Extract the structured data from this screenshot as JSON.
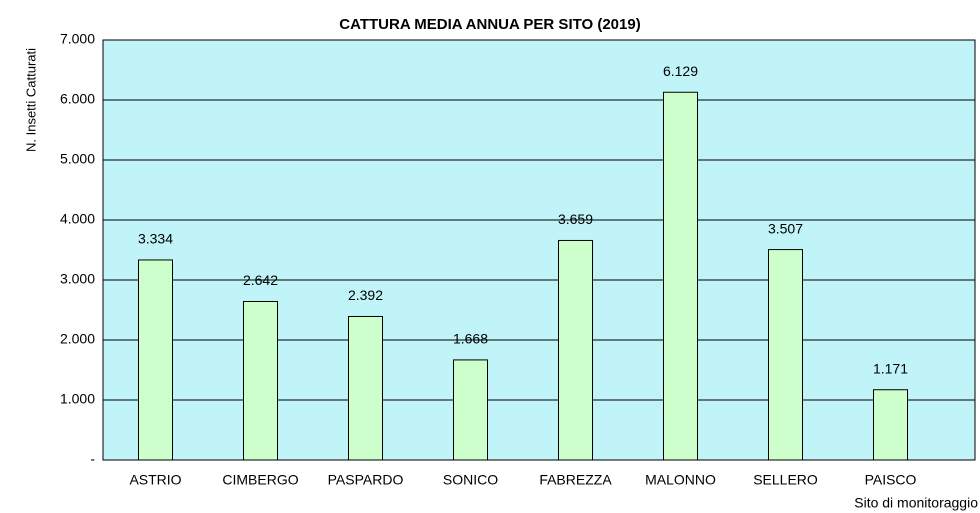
{
  "chart_data": {
    "type": "bar",
    "title": "CATTURA MEDIA ANNUA PER SITO (2019)",
    "y_label": "N. Insetti Catturati",
    "x_label": "Sito di monitoraggio",
    "categories": [
      "ASTRIO",
      "CIMBERGO",
      "PASPARDO",
      "SONICO",
      "FABREZZA",
      "MALONNO",
      "SELLERO",
      "PAISCO"
    ],
    "values": [
      3334,
      2642,
      2392,
      1668,
      3659,
      6129,
      3507,
      1171
    ],
    "value_labels": [
      "3.334",
      "2.642",
      "2.392",
      "1.668",
      "3.659",
      "6.129",
      "3.507",
      "1.171"
    ],
    "color": "#ccffcc",
    "background": "#c0f4f8",
    "ylim": [
      0,
      7000
    ],
    "yticks": [
      {
        "value": 0,
        "label": "-"
      },
      {
        "value": 1000,
        "label": "1.000"
      },
      {
        "value": 2000,
        "label": "2.000"
      },
      {
        "value": 3000,
        "label": "3.000"
      },
      {
        "value": 4000,
        "label": "4.000"
      },
      {
        "value": 5000,
        "label": "5.000"
      },
      {
        "value": 6000,
        "label": "6.000"
      },
      {
        "value": 7000,
        "label": "7.000"
      }
    ],
    "grid": true
  }
}
